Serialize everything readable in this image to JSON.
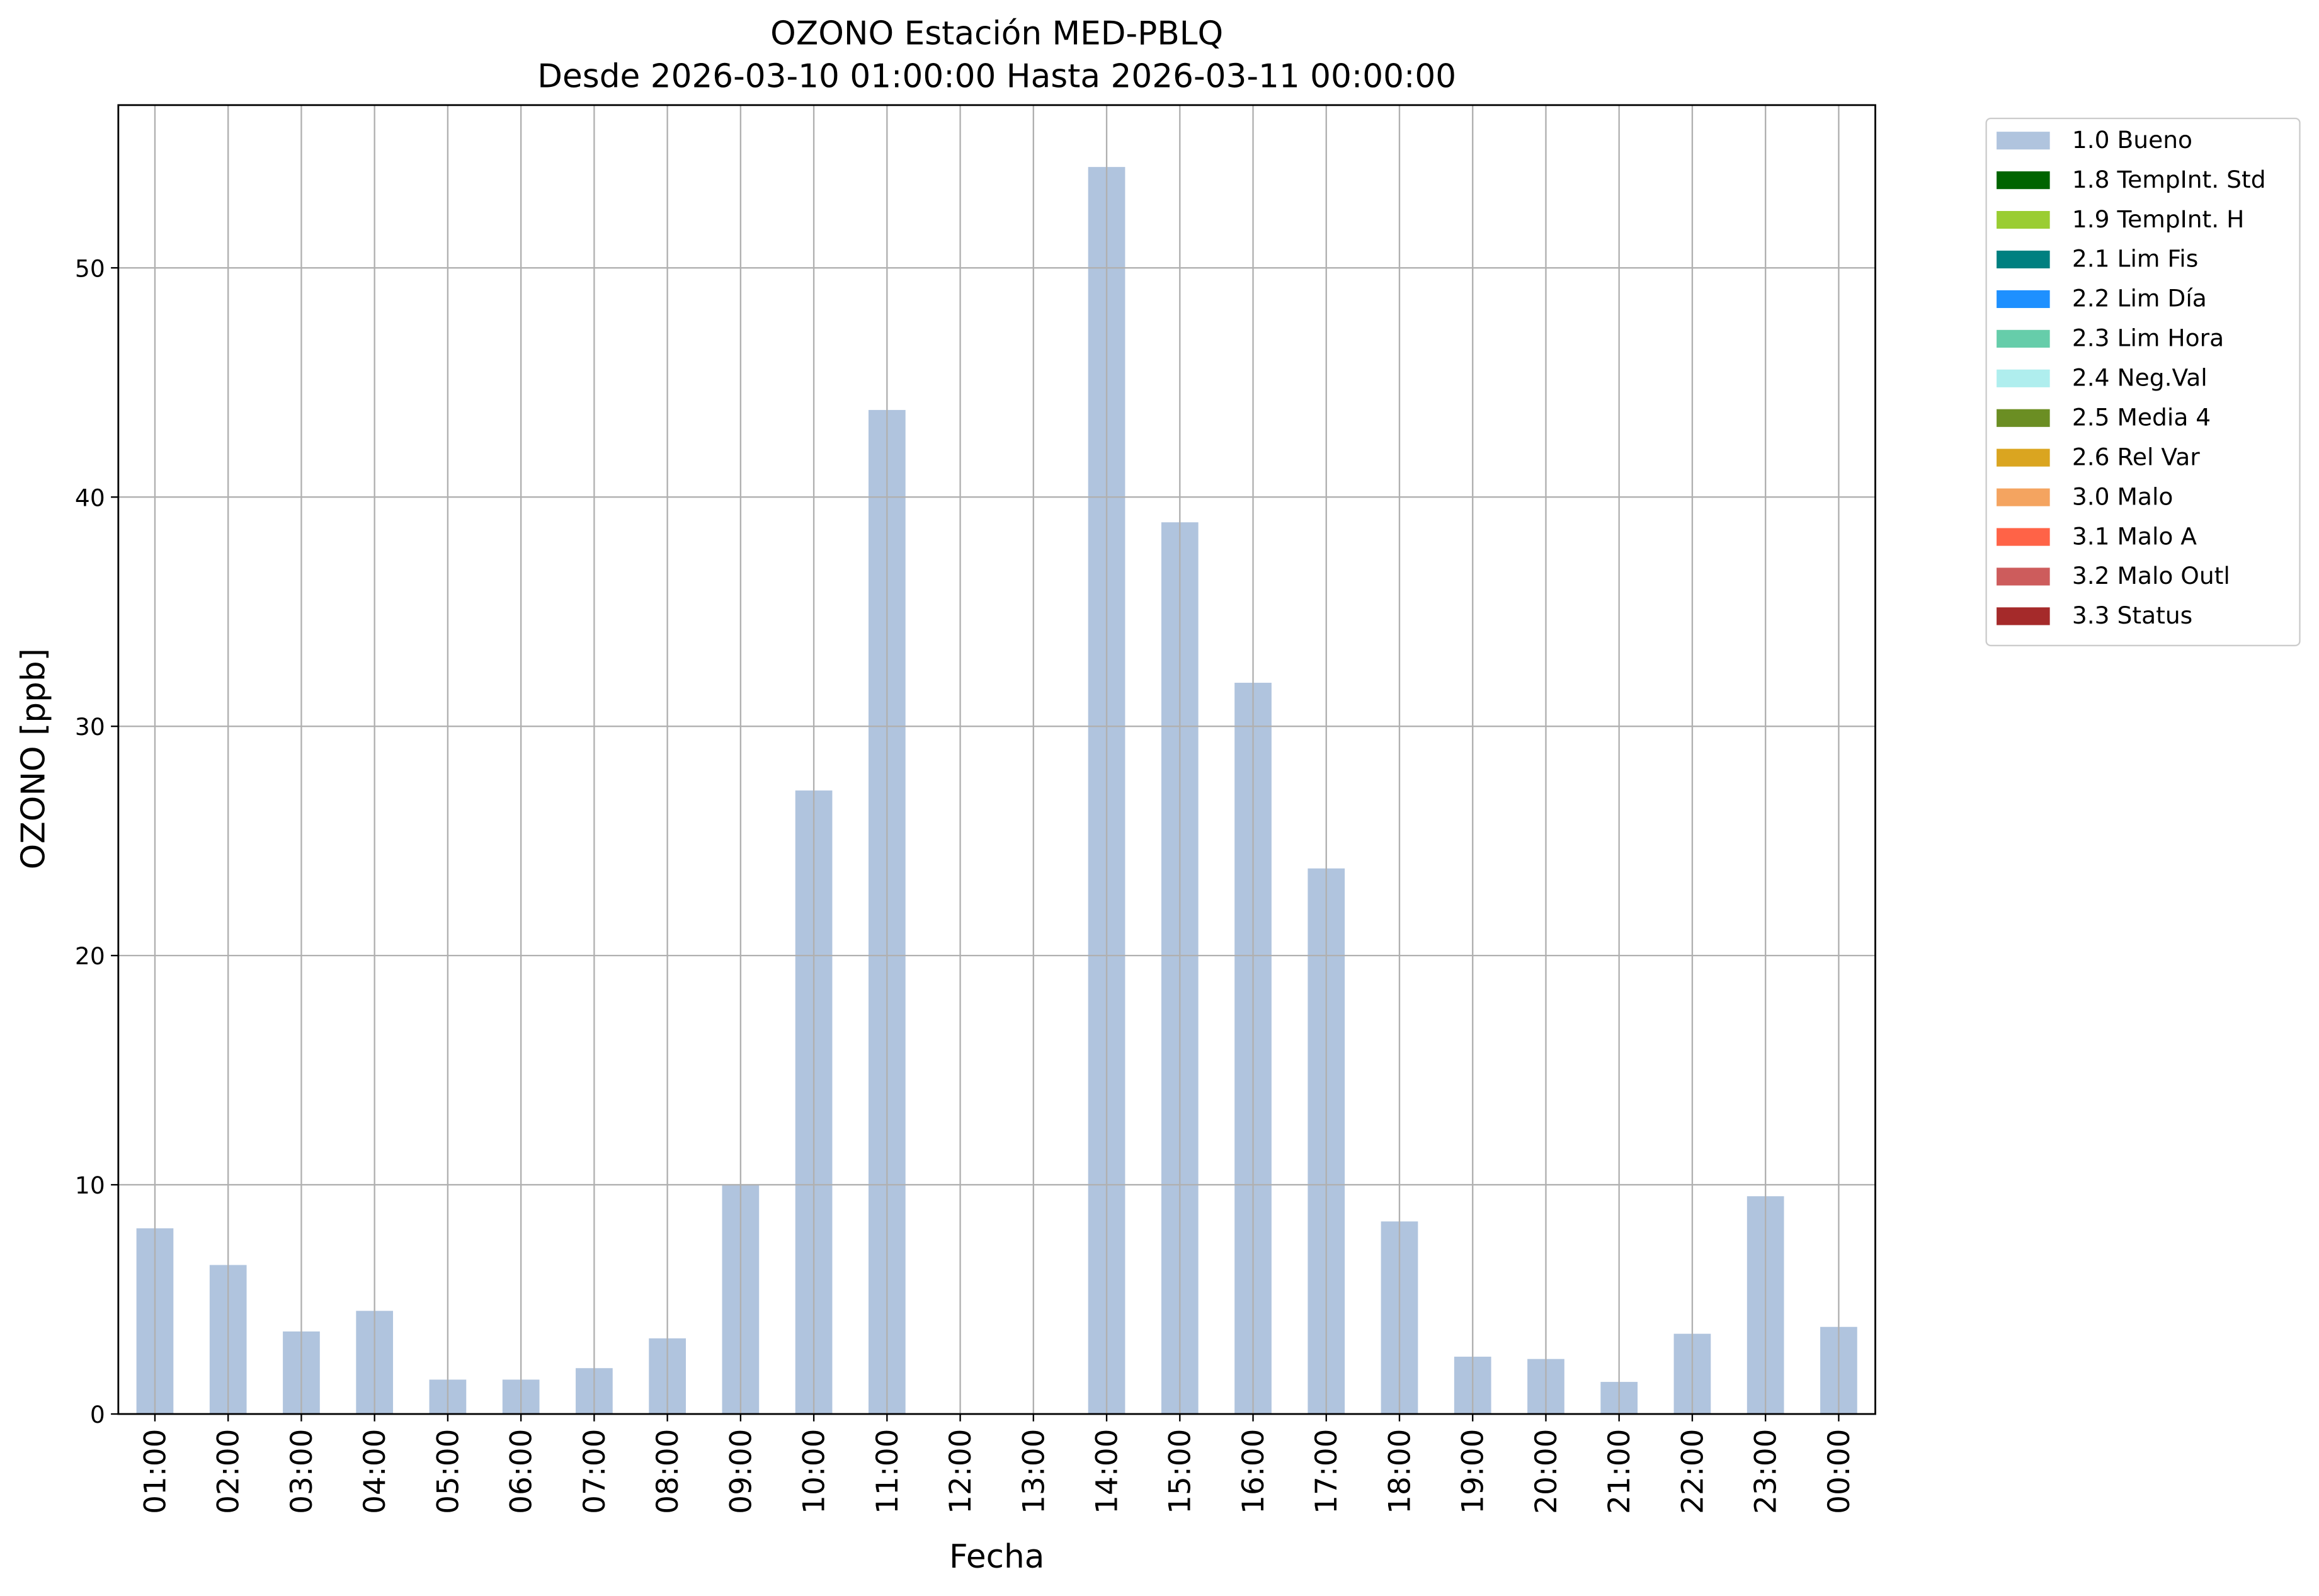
{
  "chart_data": {
    "type": "bar",
    "title": "OZONO Estación MED-PBLQ",
    "subtitle": "Desde 2026-03-10 01:00:00 Hasta 2026-03-11 00:00:00",
    "x_label": "Fecha",
    "y_label": "OZONO [ppb]",
    "categories": [
      "01:00",
      "02:00",
      "03:00",
      "04:00",
      "05:00",
      "06:00",
      "07:00",
      "08:00",
      "09:00",
      "10:00",
      "11:00",
      "12:00",
      "13:00",
      "14:00",
      "15:00",
      "16:00",
      "17:00",
      "18:00",
      "19:00",
      "20:00",
      "21:00",
      "22:00",
      "23:00",
      "00:00"
    ],
    "series": [
      {
        "name": "1.0 Bueno",
        "color": "#b0c4de",
        "values": [
          8.1,
          6.5,
          3.6,
          4.5,
          1.5,
          1.5,
          2.0,
          3.3,
          10.0,
          27.2,
          43.8,
          null,
          null,
          54.4,
          38.9,
          31.9,
          23.8,
          8.4,
          2.5,
          2.4,
          1.4,
          3.5,
          9.5,
          3.8
        ]
      },
      {
        "name": "1.8 TempInt. Std",
        "color": "#006400",
        "values": [
          null,
          null,
          null,
          null,
          null,
          null,
          null,
          null,
          null,
          null,
          null,
          null,
          null,
          null,
          null,
          null,
          null,
          null,
          null,
          null,
          null,
          null,
          null,
          null
        ]
      },
      {
        "name": "1.9 TempInt. H",
        "color": "#9acd32",
        "values": [
          null,
          null,
          null,
          null,
          null,
          null,
          null,
          null,
          null,
          null,
          null,
          null,
          null,
          null,
          null,
          null,
          null,
          null,
          null,
          null,
          null,
          null,
          null,
          null
        ]
      },
      {
        "name": "2.1 Lim Fis",
        "color": "#008080",
        "values": [
          null,
          null,
          null,
          null,
          null,
          null,
          null,
          null,
          null,
          null,
          null,
          null,
          null,
          null,
          null,
          null,
          null,
          null,
          null,
          null,
          null,
          null,
          null,
          null
        ]
      },
      {
        "name": "2.2 Lim Día",
        "color": "#1e90ff",
        "values": [
          null,
          null,
          null,
          null,
          null,
          null,
          null,
          null,
          null,
          null,
          null,
          null,
          null,
          null,
          null,
          null,
          null,
          null,
          null,
          null,
          null,
          null,
          null,
          null
        ]
      },
      {
        "name": "2.3 Lim Hora",
        "color": "#66cdaa",
        "values": [
          null,
          null,
          null,
          null,
          null,
          null,
          null,
          null,
          null,
          null,
          null,
          null,
          null,
          null,
          null,
          null,
          null,
          null,
          null,
          null,
          null,
          null,
          null,
          null
        ]
      },
      {
        "name": "2.4 Neg.Val",
        "color": "#afeeee",
        "values": [
          null,
          null,
          null,
          null,
          null,
          null,
          null,
          null,
          null,
          null,
          null,
          null,
          null,
          null,
          null,
          null,
          null,
          null,
          null,
          null,
          null,
          null,
          null,
          null
        ]
      },
      {
        "name": "2.5 Media 4",
        "color": "#6b8e23",
        "values": [
          null,
          null,
          null,
          null,
          null,
          null,
          null,
          null,
          null,
          null,
          null,
          null,
          null,
          null,
          null,
          null,
          null,
          null,
          null,
          null,
          null,
          null,
          null,
          null
        ]
      },
      {
        "name": "2.6 Rel Var",
        "color": "#daa520",
        "values": [
          null,
          null,
          null,
          null,
          null,
          null,
          null,
          null,
          null,
          null,
          null,
          null,
          null,
          null,
          null,
          null,
          null,
          null,
          null,
          null,
          null,
          null,
          null,
          null
        ]
      },
      {
        "name": "3.0 Malo",
        "color": "#f4a460",
        "values": [
          null,
          null,
          null,
          null,
          null,
          null,
          null,
          null,
          null,
          null,
          null,
          null,
          null,
          null,
          null,
          null,
          null,
          null,
          null,
          null,
          null,
          null,
          null,
          null
        ]
      },
      {
        "name": "3.1 Malo A",
        "color": "#ff6347",
        "values": [
          null,
          null,
          null,
          null,
          null,
          null,
          null,
          null,
          null,
          null,
          null,
          null,
          null,
          null,
          null,
          null,
          null,
          null,
          null,
          null,
          null,
          null,
          null,
          null
        ]
      },
      {
        "name": "3.2 Malo Outl",
        "color": "#cd5c5c",
        "values": [
          null,
          null,
          null,
          null,
          null,
          null,
          null,
          null,
          null,
          null,
          null,
          null,
          null,
          null,
          null,
          null,
          null,
          null,
          null,
          null,
          null,
          null,
          null,
          null
        ]
      },
      {
        "name": "3.3 Status",
        "color": "#a52a2a",
        "values": [
          null,
          null,
          null,
          null,
          null,
          null,
          null,
          null,
          null,
          null,
          null,
          null,
          null,
          null,
          null,
          null,
          null,
          null,
          null,
          null,
          null,
          null,
          null,
          null
        ]
      }
    ],
    "ylim": [
      0,
      57.1
    ],
    "yticks": [
      0,
      10,
      20,
      30,
      40,
      50
    ],
    "grid": true,
    "legend": "outside-upper-right"
  }
}
